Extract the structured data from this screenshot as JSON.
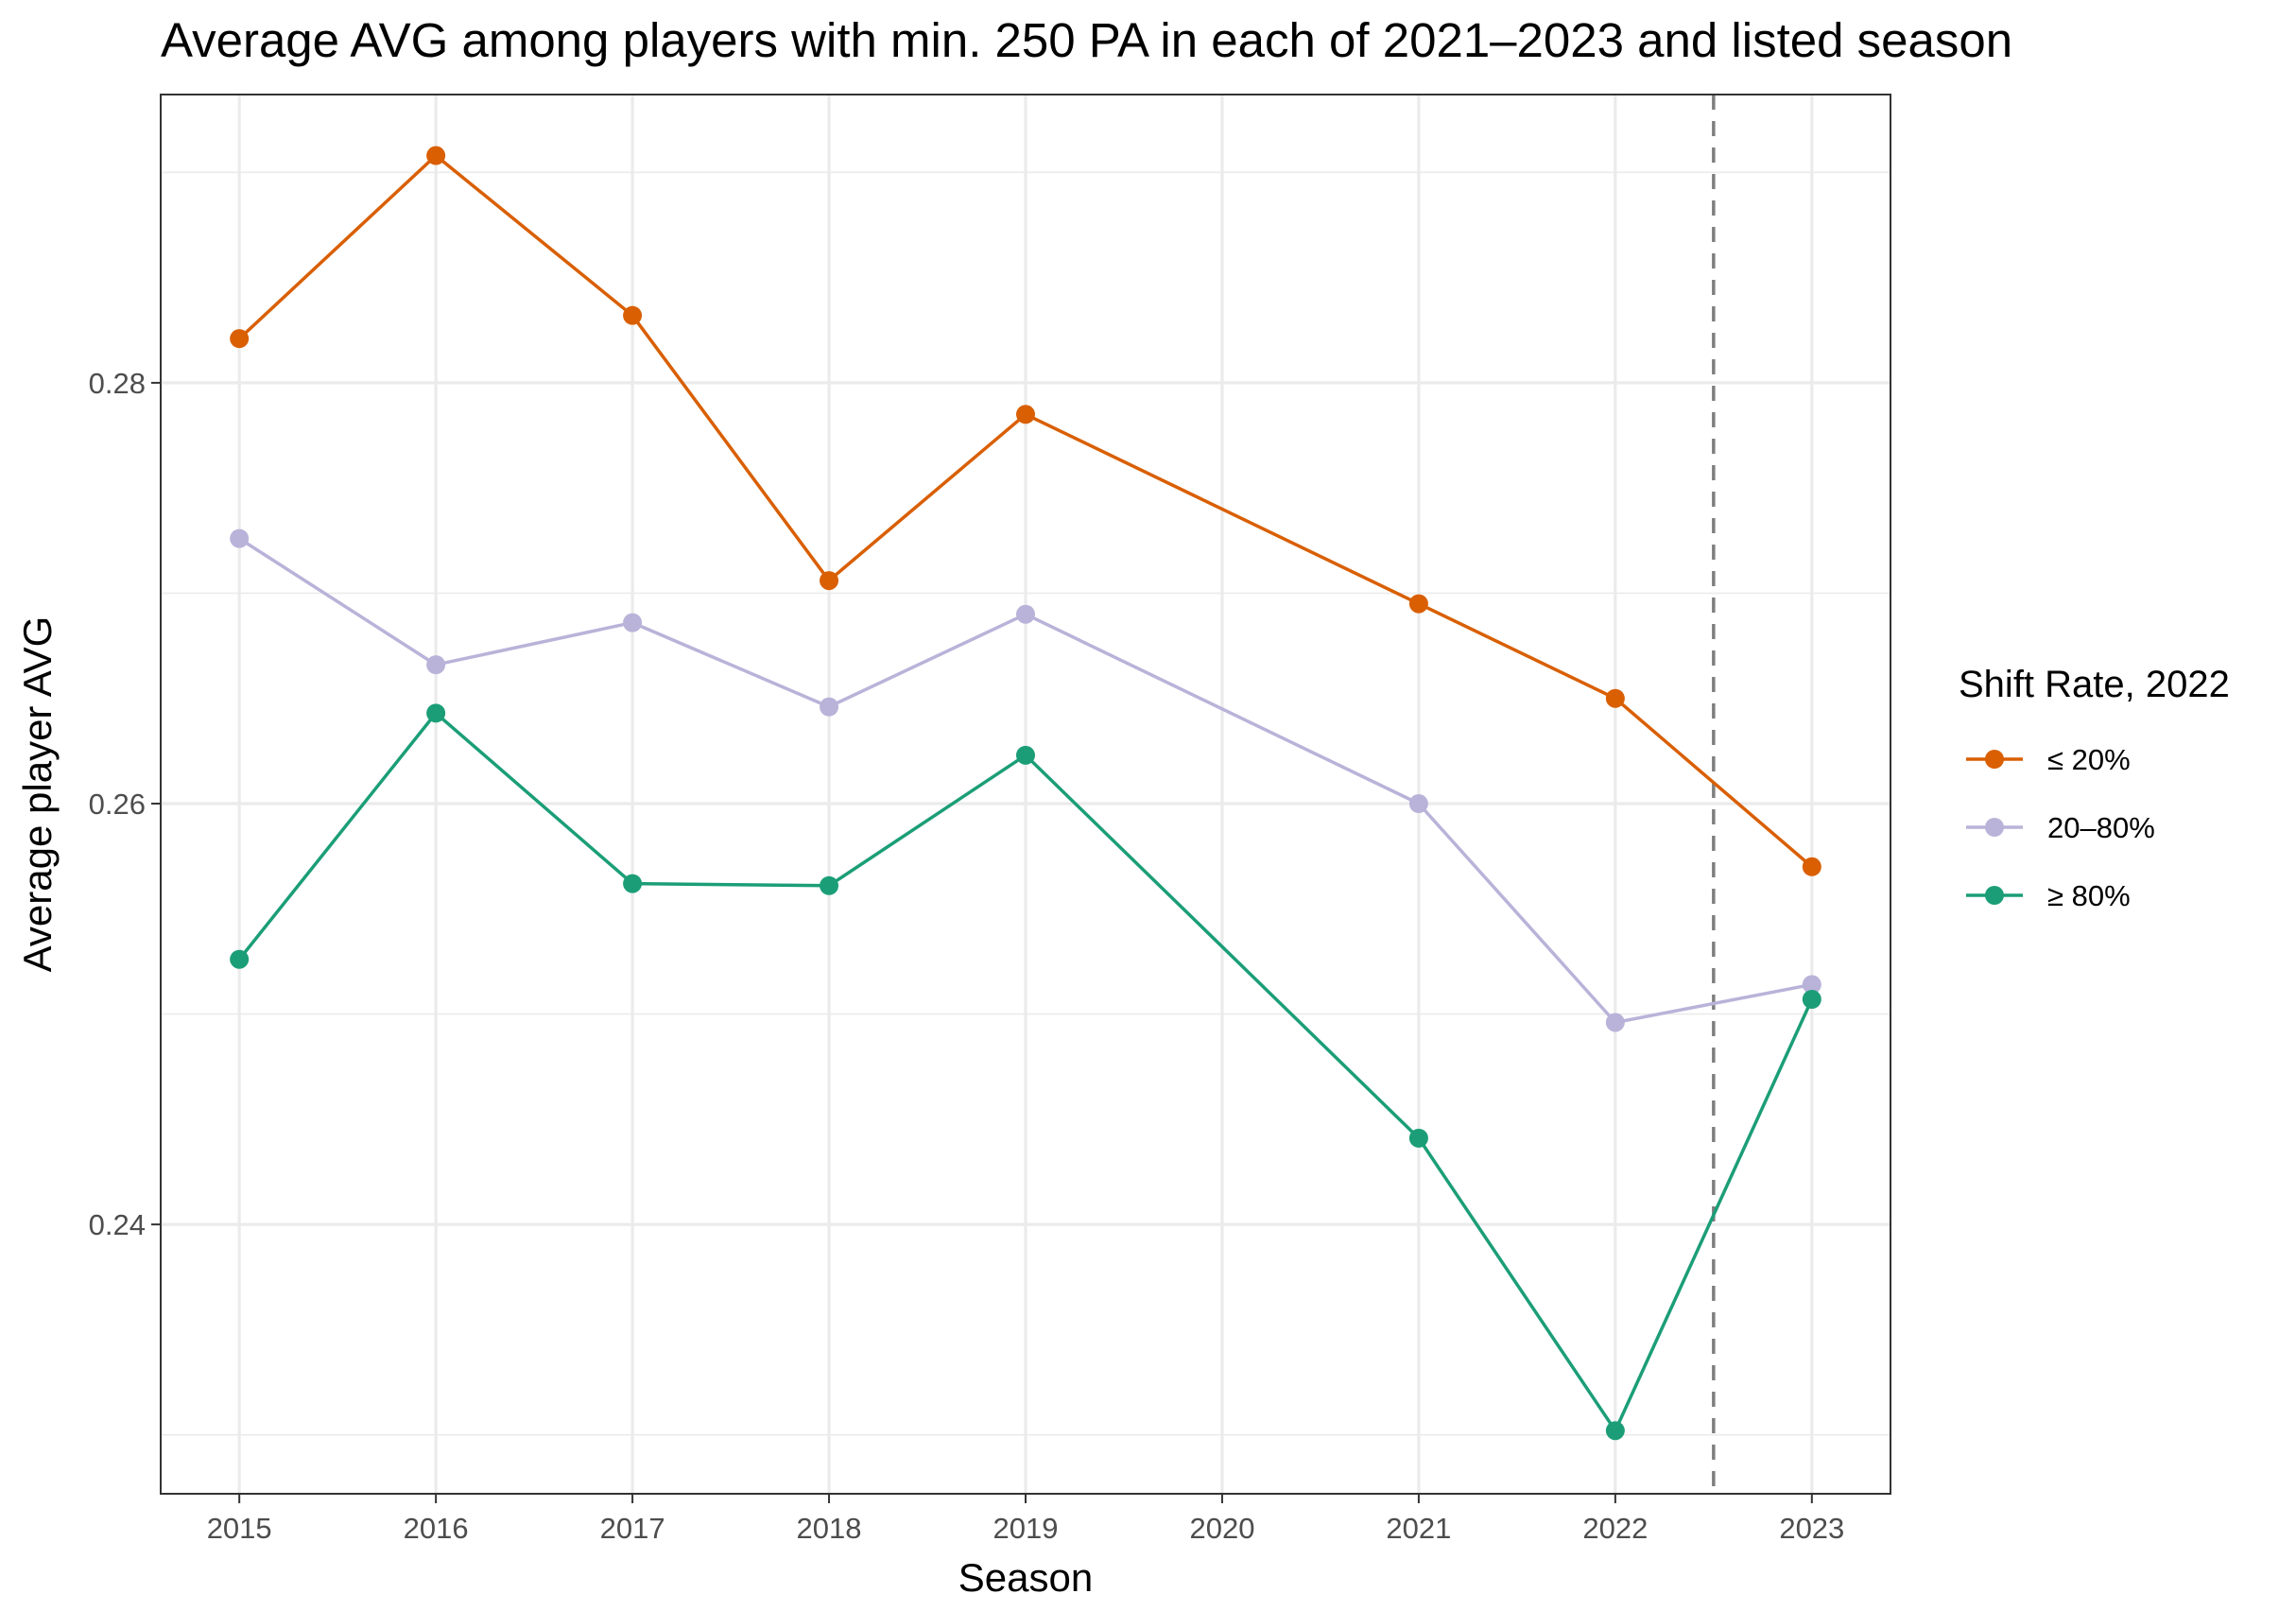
{
  "chart_data": {
    "type": "line",
    "title": "Average AVG among players with min. 250 PA in each of 2021–2023 and listed season",
    "xlabel": "Season",
    "ylabel": "Average player AVG",
    "x_ticks": [
      "2015",
      "2016",
      "2017",
      "2018",
      "2019",
      "2020",
      "2021",
      "2022",
      "2023"
    ],
    "y_ticks": [
      "0.24",
      "0.26",
      "0.28"
    ],
    "y_tick_values": [
      0.24,
      0.26,
      0.28
    ],
    "xlim": [
      2014.6,
      2023.4
    ],
    "ylim": [
      0.2272,
      0.2937
    ],
    "grid": true,
    "reference_line": {
      "x": 2022.5,
      "style": "dashed",
      "color": "#7f7f7f"
    },
    "legend": {
      "title": "Shift Rate, 2022",
      "position": "right"
    },
    "series": [
      {
        "name": "≤ 20%",
        "color": "#d95f02",
        "x": [
          2015,
          2016,
          2017,
          2018,
          2019,
          2021,
          2022,
          2023
        ],
        "y": [
          0.2821,
          0.2908,
          0.2832,
          0.2706,
          0.2785,
          0.2695,
          0.265,
          0.257
        ]
      },
      {
        "name": "20–80%",
        "color": "#b9b3d9",
        "x": [
          2015,
          2016,
          2017,
          2018,
          2019,
          2021,
          2022,
          2023
        ],
        "y": [
          0.2726,
          0.2666,
          0.2686,
          0.2646,
          0.269,
          0.26,
          0.2496,
          0.2514
        ]
      },
      {
        "name": "≥ 80%",
        "color": "#1b9e77",
        "x": [
          2015,
          2016,
          2017,
          2018,
          2019,
          2021,
          2022,
          2023
        ],
        "y": [
          0.2526,
          0.2643,
          0.2562,
          0.2561,
          0.2623,
          0.2441,
          0.2302,
          0.2507
        ]
      }
    ]
  }
}
